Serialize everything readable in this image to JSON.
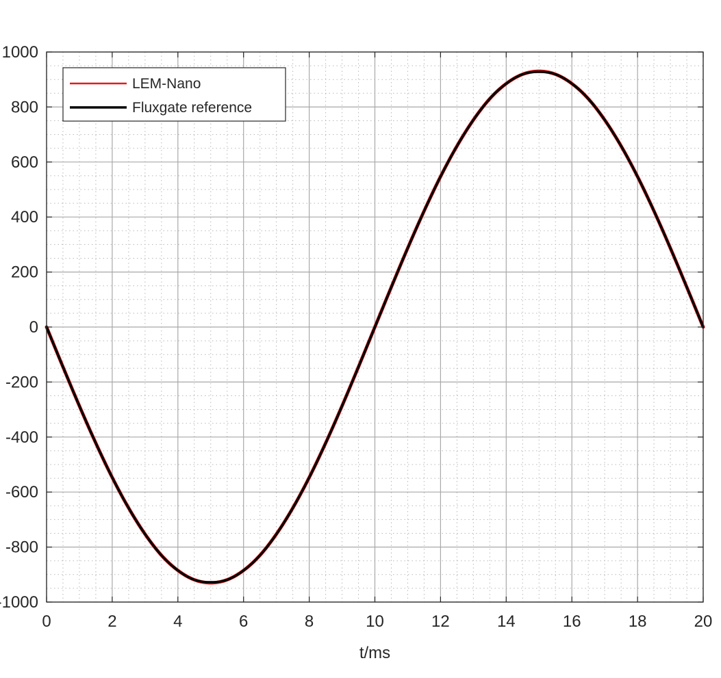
{
  "chart_data": {
    "type": "line",
    "title": "",
    "xlabel": "t/ms",
    "ylabel": "",
    "xlim": [
      0,
      20
    ],
    "ylim": [
      -1000,
      1000
    ],
    "xticks": [
      0,
      2,
      4,
      6,
      8,
      10,
      12,
      14,
      16,
      18,
      20
    ],
    "yticks": [
      -1000,
      -800,
      -600,
      -400,
      -200,
      0,
      200,
      400,
      600,
      800,
      1000
    ],
    "xtick_labels": [
      "0",
      "2",
      "4",
      "6",
      "8",
      "10",
      "12",
      "14",
      "16",
      "18",
      "20"
    ],
    "ytick_labels": [
      "-1000",
      "-800",
      "-600",
      "-400",
      "-200",
      "0",
      "200",
      "400",
      "600",
      "800",
      "1000"
    ],
    "grid": "major and minor",
    "legend_position": "top-left",
    "series": [
      {
        "name": "LEM-Nano",
        "color": "#e31a1c",
        "x": [
          0,
          0.5,
          1,
          1.5,
          2,
          2.5,
          3,
          3.5,
          4,
          4.5,
          5,
          5.5,
          6,
          6.5,
          7,
          7.5,
          8,
          8.5,
          9,
          9.5,
          10,
          10.5,
          11,
          11.5,
          12,
          12.5,
          13,
          13.5,
          14,
          14.5,
          15,
          15.5,
          16,
          16.5,
          17,
          17.5,
          18,
          18.5,
          19,
          19.5,
          20
        ],
        "y": [
          0,
          -145,
          -287,
          -422,
          -547,
          -658,
          -753,
          -830,
          -885,
          -919,
          -930,
          -919,
          -885,
          -830,
          -753,
          -658,
          -547,
          -422,
          -287,
          -145,
          0,
          145,
          287,
          422,
          547,
          658,
          753,
          830,
          885,
          919,
          930,
          919,
          885,
          830,
          753,
          658,
          547,
          422,
          287,
          145,
          0
        ]
      },
      {
        "name": "Fluxgate reference",
        "color": "#000000",
        "x": [
          0,
          0.5,
          1,
          1.5,
          2,
          2.5,
          3,
          3.5,
          4,
          4.5,
          5,
          5.5,
          6,
          6.5,
          7,
          7.5,
          8,
          8.5,
          9,
          9.5,
          10,
          10.5,
          11,
          11.5,
          12,
          12.5,
          13,
          13.5,
          14,
          14.5,
          15,
          15.5,
          16,
          16.5,
          17,
          17.5,
          18,
          18.5,
          19,
          19.5,
          20
        ],
        "y": [
          0,
          -145,
          -287,
          -422,
          -547,
          -658,
          -753,
          -830,
          -885,
          -919,
          -928,
          -919,
          -885,
          -830,
          -753,
          -658,
          -547,
          -422,
          -287,
          -145,
          0,
          145,
          287,
          422,
          547,
          658,
          753,
          830,
          885,
          919,
          928,
          919,
          885,
          830,
          753,
          658,
          547,
          422,
          287,
          145,
          0
        ]
      }
    ]
  }
}
